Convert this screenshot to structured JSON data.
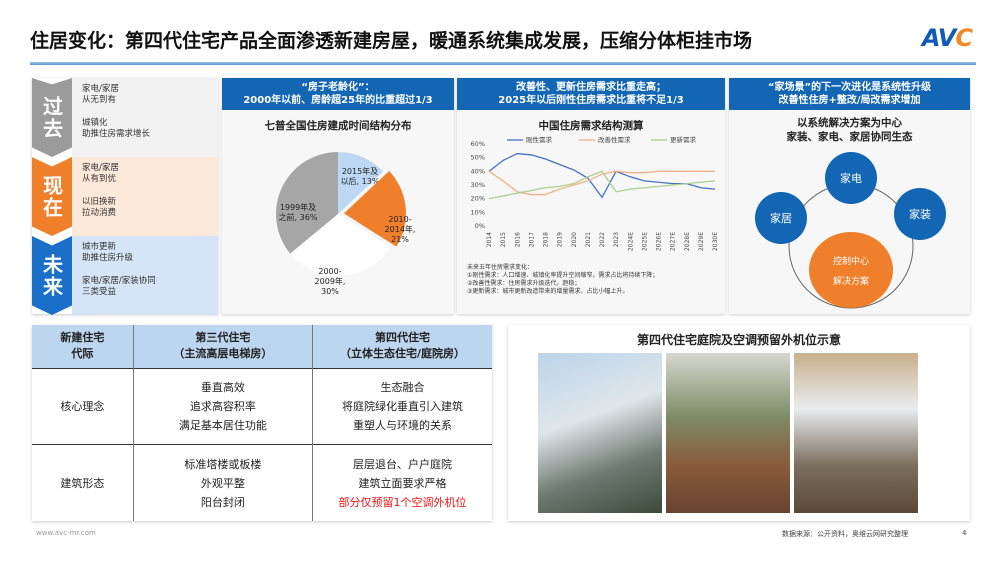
{
  "title": "住居变化：第四代住宅产品全面渗透新建房屋，暖通系统集成发展，压缩分体柜挂市场",
  "logo": "AVC",
  "timeline": [
    {
      "stage": "过去",
      "color": "#9b9b9b",
      "bg": "#f2f2f2",
      "items": [
        "家电/家居\n从无到有",
        "城镇化\n助推住房需求增长"
      ]
    },
    {
      "stage": "现在",
      "color": "#ef7f2b",
      "bg": "#fde9d9",
      "items": [
        "家电/家居\n从有到优",
        "以旧换新\n拉动消费"
      ]
    },
    {
      "stage": "未来",
      "color": "#1a6fc9",
      "bg": "#d5e5f7",
      "items": [
        "城市更新\n助推住房升级",
        "家电/家居/家装协同\n三类受益"
      ]
    }
  ],
  "panel1": {
    "header": "“房子老龄化”：\n2000年以前、房龄超25年的比重超过1/3",
    "subtitle": "七普全国住房建成时间结构分布"
  },
  "panel2": {
    "header": "改善性、更新住房需求比重走高；\n2025年以后刚性住房需求比重将不足1/3",
    "subtitle": "中国住房需求结构测算",
    "note": "未来五年住房需求变化：\n①刚性需求：人口增速、城镇化率提升空间缩窄，需求占比将持续下降；\n②改善性需求：住房需求升级迭代，趋稳；\n③更新需求：城市更新改造带来的增量需求，占比小幅上升。"
  },
  "panel3": {
    "header": "“家场景”的下一次进化是系统性升级\n改善性住房+整改/局改需求增加",
    "subtitle": "以系统解决方案为中心\n家装、家电、家居协同生态",
    "nodes": [
      "家电",
      "家居",
      "家装"
    ],
    "center": [
      "控制中心",
      "解决方案"
    ]
  },
  "chart_data": [
    {
      "type": "pie",
      "title": "七普全国住房建成时间结构分布",
      "slices": [
        {
          "label": "2015年及以后",
          "value": 13,
          "color": "#bcd8f5"
        },
        {
          "label": "2010-2014年",
          "value": 21,
          "color": "#ef7f2b"
        },
        {
          "label": "2000-2009年",
          "value": 30,
          "color": "#ffffff"
        },
        {
          "label": "1999年及之前",
          "value": 36,
          "color": "#a6a6a6"
        }
      ],
      "labels": [
        "2015年及\n以后, 13%",
        "2010-\n2014年,\n21%",
        "2000-\n2009年,\n30%",
        "1999年及\n之前, 36%"
      ]
    },
    {
      "type": "line",
      "title": "中国住房需求结构测算",
      "x": [
        "2014",
        "2015",
        "2016",
        "2017",
        "2018",
        "2019",
        "2020",
        "2021",
        "2022",
        "2023",
        "2024E",
        "2025E",
        "2026E",
        "2027E",
        "2028E",
        "2029E",
        "2030E"
      ],
      "ylim": [
        0,
        60
      ],
      "yticks": [
        "0%",
        "10%",
        "20%",
        "30%",
        "40%",
        "50%",
        "60%"
      ],
      "legend": "top",
      "series": [
        {
          "name": "刚性需求",
          "color": "#4472c4",
          "values": [
            40,
            48,
            53,
            52,
            49,
            45,
            41,
            35,
            21,
            40,
            36,
            33,
            32,
            31,
            31,
            28,
            27
          ]
        },
        {
          "name": "改善性需求",
          "color": "#f4b183",
          "values": [
            40,
            33,
            25,
            23,
            23,
            27,
            30,
            33,
            38,
            40,
            39,
            39,
            40,
            40,
            40,
            40,
            40
          ]
        },
        {
          "name": "更新需求",
          "color": "#a9d18e",
          "values": [
            20,
            22,
            24,
            26,
            28,
            29,
            31,
            36,
            40,
            25,
            27,
            28,
            29,
            30,
            31,
            32,
            33
          ]
        }
      ]
    }
  ],
  "table": {
    "headers": [
      "新建住宅\n代际",
      "第三代住宅\n（主流高层电梯房）",
      "第四代住宅\n（立体生态住宅/庭院房）"
    ],
    "rows": [
      {
        "label": "核心理念",
        "c3": [
          "垂直高效",
          "追求高容积率",
          "满足基本居住功能"
        ],
        "c4": [
          "生态融合",
          "将庭院绿化垂直引入建筑",
          "重塑人与环境的关系"
        ]
      },
      {
        "label": "建筑形态",
        "c3": [
          "标准塔楼或板楼",
          "外观平整",
          "阳台封闭"
        ],
        "c4": [
          "层层退台、户户庭院",
          "建筑立面要求严格",
          "部分仅预留1个空调外机位"
        ]
      }
    ]
  },
  "photos": {
    "title": "第四代住宅庭院及空调预留外机位示意"
  },
  "footer": {
    "url": "www.avc-mr.com",
    "source": "数据来源：公开资料，奥维云网研究整理",
    "page": "4"
  }
}
